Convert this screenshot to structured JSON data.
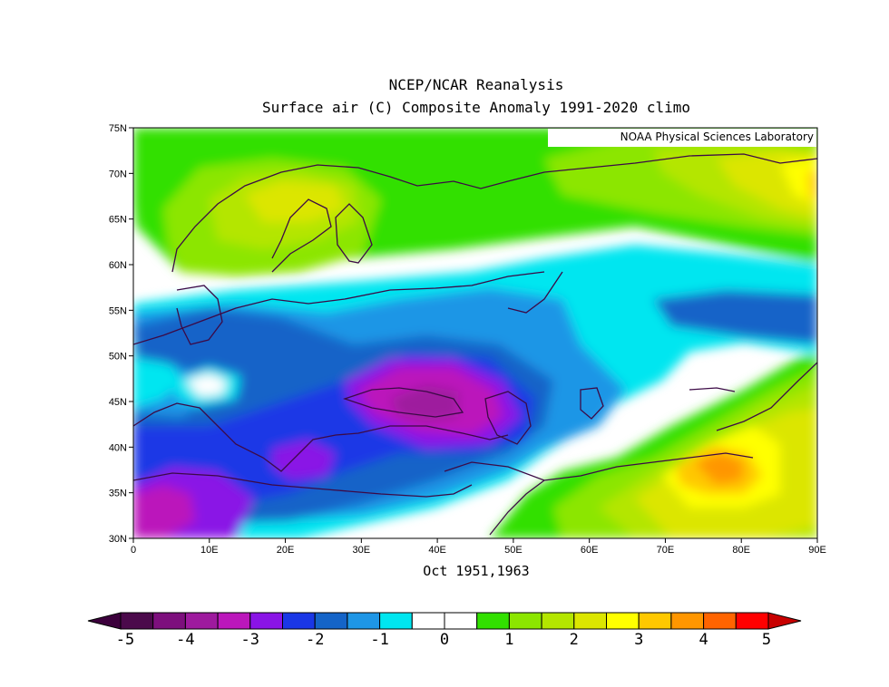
{
  "title_line1": "NCEP/NCAR Reanalysis",
  "title_line2": "Surface air (C) Composite Anomaly 1991-2020 climo",
  "subtitle": "Oct 1951,1963",
  "credit": "NOAA Physical Sciences Laboratory",
  "map": {
    "lat_range": [
      30,
      75
    ],
    "lon_range": [
      0,
      90
    ],
    "y_ticks": [
      "75N",
      "70N",
      "65N",
      "60N",
      "55N",
      "50N",
      "45N",
      "40N",
      "35N",
      "30N"
    ],
    "x_ticks": [
      "0",
      "10E",
      "20E",
      "30E",
      "40E",
      "50E",
      "60E",
      "70E",
      "80E",
      "90E"
    ]
  },
  "colorbar": {
    "labels": [
      "-5",
      "-4",
      "-3",
      "-2",
      "-1",
      "0",
      "1",
      "2",
      "3",
      "4",
      "5"
    ],
    "colors": [
      "#4b0a4b",
      "#7d0f7d",
      "#9e1a9e",
      "#bb17bb",
      "#8a14e6",
      "#1a37e6",
      "#1464c8",
      "#1e96e6",
      "#00e6f0",
      "#ffffff",
      "#ffffff",
      "#32e000",
      "#8ce600",
      "#b4e600",
      "#dce600",
      "#ffff00",
      "#ffc800",
      "#ff9600",
      "#ff6400",
      "#ff0000"
    ],
    "under_color": "#3c003c",
    "over_color": "#c80000"
  }
}
